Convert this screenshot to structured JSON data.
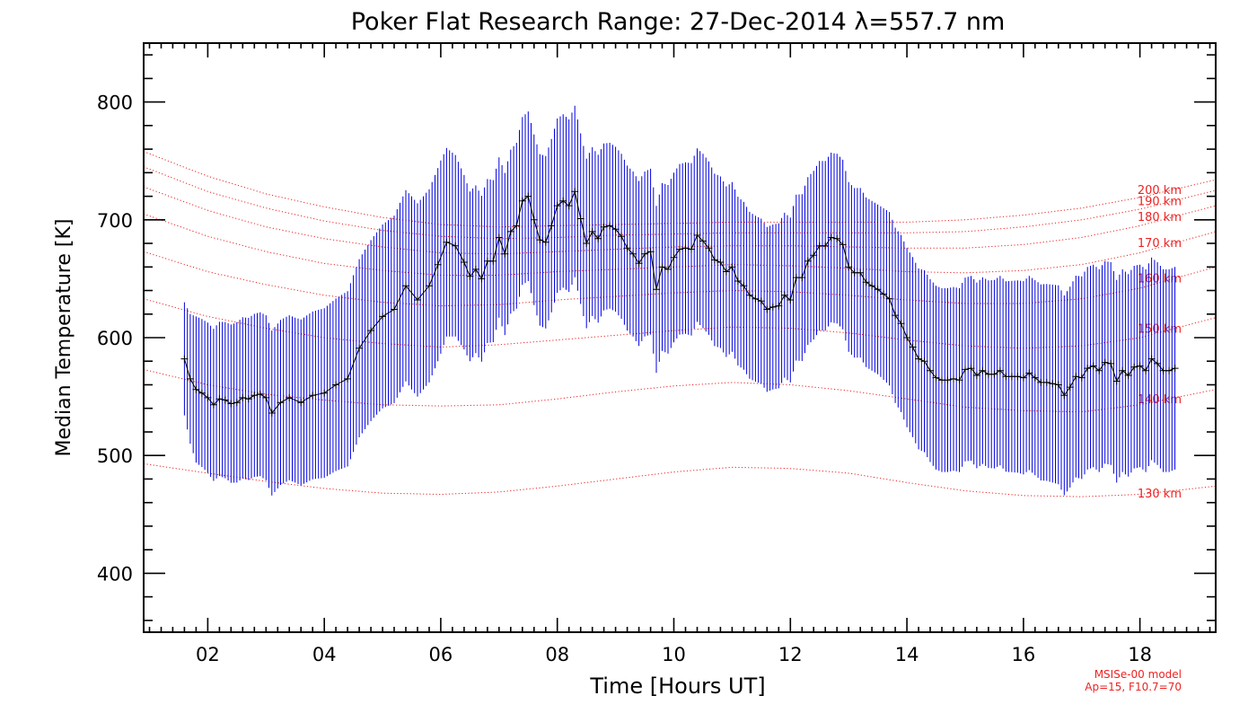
{
  "chart_data": {
    "type": "line",
    "title": "Poker Flat Research Range: 27-Dec-2014 λ=557.7 nm",
    "xlabel": "Time [Hours UT]",
    "ylabel": "Median Temperature [K]",
    "xlim": [
      0.9,
      19.3
    ],
    "ylim": [
      350,
      850
    ],
    "xticks": [
      {
        "value": 2,
        "label": "02"
      },
      {
        "value": 4,
        "label": "04"
      },
      {
        "value": 6,
        "label": "06"
      },
      {
        "value": 8,
        "label": "08"
      },
      {
        "value": 10,
        "label": "10"
      },
      {
        "value": 12,
        "label": "12"
      },
      {
        "value": 14,
        "label": "14"
      },
      {
        "value": 16,
        "label": "16"
      },
      {
        "value": 18,
        "label": "18"
      }
    ],
    "yticks": [
      {
        "value": 400,
        "label": "400"
      },
      {
        "value": 500,
        "label": "500"
      },
      {
        "value": 600,
        "label": "600"
      },
      {
        "value": 700,
        "label": "700"
      },
      {
        "value": 800,
        "label": "800"
      }
    ],
    "grid": false,
    "colors": {
      "series": "#000000",
      "errorbars": "#0000dd",
      "model": "#ee2222"
    },
    "series": [
      {
        "x": [
          1.6,
          1.7,
          1.8,
          1.9,
          2.0,
          2.1,
          2.2,
          2.3,
          2.4,
          2.5,
          2.6,
          2.7,
          2.8,
          2.9,
          3.0,
          3.1,
          3.25,
          3.4,
          3.6,
          3.8,
          4.0,
          4.2,
          4.4,
          4.6,
          4.8,
          5.0,
          5.2,
          5.4,
          5.6,
          5.8,
          5.95,
          6.1,
          6.25,
          6.4,
          6.5,
          6.6,
          6.7,
          6.8,
          6.9,
          7.0,
          7.1,
          7.2,
          7.3,
          7.4,
          7.5,
          7.6,
          7.7,
          7.8,
          7.9,
          8.0,
          8.1,
          8.2,
          8.3,
          8.4,
          8.5,
          8.6,
          8.7,
          8.8,
          8.9,
          9.0,
          9.1,
          9.2,
          9.3,
          9.4,
          9.5,
          9.6,
          9.7,
          9.8,
          9.9,
          10.0,
          10.1,
          10.2,
          10.3,
          10.4,
          10.5,
          10.6,
          10.7,
          10.8,
          10.9,
          11.0,
          11.1,
          11.2,
          11.3,
          11.4,
          11.5,
          11.6,
          11.7,
          11.8,
          11.9,
          12.0,
          12.1,
          12.2,
          12.3,
          12.4,
          12.5,
          12.6,
          12.7,
          12.8,
          12.9,
          13.0,
          13.1,
          13.2,
          13.3,
          13.4,
          13.5,
          13.6,
          13.7,
          13.8,
          13.9,
          14.0,
          14.1,
          14.2,
          14.3,
          14.4,
          14.5,
          14.6,
          14.7,
          14.8,
          14.9,
          15.0,
          15.1,
          15.2,
          15.3,
          15.4,
          15.5,
          15.6,
          15.7,
          15.8,
          15.9,
          16.0,
          16.1,
          16.2,
          16.3,
          16.4,
          16.5,
          16.6,
          16.7,
          16.8,
          16.9,
          17.0,
          17.1,
          17.2,
          17.3,
          17.4,
          17.5,
          17.6,
          17.7,
          17.8,
          17.9,
          18.0,
          18.1,
          18.2,
          18.3,
          18.4,
          18.5,
          18.6
        ],
        "y": [
          582,
          565,
          556,
          553,
          549,
          543,
          548,
          547,
          544,
          545,
          549,
          548,
          551,
          552,
          549,
          536,
          545,
          549,
          545,
          551,
          553,
          560,
          565,
          591,
          606,
          618,
          624,
          644,
          632,
          644,
          662,
          681,
          678,
          664,
          652,
          658,
          650,
          665,
          665,
          685,
          671,
          690,
          695,
          716,
          720,
          700,
          683,
          681,
          695,
          712,
          716,
          712,
          724,
          701,
          680,
          690,
          684,
          694,
          695,
          692,
          686,
          676,
          671,
          663,
          671,
          673,
          641,
          660,
          658,
          668,
          675,
          676,
          675,
          687,
          682,
          676,
          666,
          664,
          656,
          660,
          648,
          644,
          636,
          633,
          631,
          624,
          626,
          627,
          636,
          632,
          651,
          651,
          665,
          670,
          678,
          678,
          685,
          684,
          679,
          660,
          655,
          655,
          647,
          644,
          641,
          637,
          633,
          619,
          612,
          600,
          592,
          582,
          580,
          572,
          566,
          564,
          564,
          565,
          564,
          573,
          574,
          568,
          572,
          569,
          569,
          572,
          567,
          567,
          567,
          566,
          570,
          566,
          562,
          562,
          561,
          560,
          551,
          558,
          567,
          566,
          574,
          576,
          572,
          579,
          578,
          563,
          572,
          568,
          575,
          576,
          572,
          582,
          578,
          572,
          572,
          574
        ]
      }
    ],
    "error_half_width": {
      "x": [
        1.6,
        1.8,
        2.5,
        3.0,
        3.5,
        4.0,
        4.5,
        5.0,
        5.5,
        6.0,
        6.5,
        7.0,
        7.5,
        8.0,
        8.5,
        9.0,
        9.5,
        10.0,
        10.5,
        11.0,
        11.5,
        12.0,
        12.5,
        13.0,
        13.5,
        14.0,
        14.5,
        15.0,
        15.5,
        16.0,
        16.5,
        17.0,
        17.5,
        18.0,
        18.6
      ],
      "y": [
        48,
        62,
        68,
        70,
        70,
        72,
        75,
        78,
        82,
        82,
        72,
        68,
        72,
        74,
        72,
        70,
        70,
        72,
        74,
        72,
        70,
        70,
        72,
        72,
        72,
        76,
        78,
        78,
        80,
        82,
        84,
        86,
        86,
        86,
        86
      ]
    },
    "model": {
      "name": "MSISe-00 model",
      "params": "Ap=15, F10.7=70",
      "x": [
        0.9,
        2.0,
        3.0,
        4.0,
        5.0,
        6.0,
        7.0,
        8.0,
        9.0,
        10.0,
        11.0,
        12.0,
        13.0,
        14.0,
        15.0,
        16.0,
        17.0,
        18.0,
        19.3
      ],
      "curves": [
        {
          "label": "130 km",
          "y": [
            493,
            485,
            478,
            472,
            468,
            467,
            469,
            474,
            480,
            486,
            490,
            489,
            485,
            477,
            470,
            466,
            465,
            467,
            474
          ]
        },
        {
          "label": "140 km",
          "y": [
            573,
            560,
            552,
            547,
            543,
            542,
            543,
            548,
            554,
            559,
            562,
            560,
            555,
            548,
            541,
            538,
            537,
            543,
            556
          ]
        },
        {
          "label": "150 km",
          "y": [
            633,
            618,
            608,
            600,
            595,
            592,
            594,
            598,
            602,
            606,
            609,
            608,
            604,
            598,
            593,
            591,
            593,
            600,
            617
          ]
        },
        {
          "label": "160 km",
          "y": [
            673,
            656,
            645,
            636,
            630,
            627,
            628,
            632,
            635,
            638,
            640,
            639,
            636,
            632,
            629,
            629,
            633,
            642,
            660
          ]
        },
        {
          "label": "170 km",
          "y": [
            705,
            686,
            673,
            663,
            657,
            653,
            653,
            656,
            658,
            660,
            662,
            661,
            659,
            656,
            655,
            657,
            662,
            672,
            690
          ]
        },
        {
          "label": "180 km",
          "y": [
            728,
            708,
            694,
            684,
            677,
            672,
            671,
            673,
            675,
            677,
            678,
            678,
            677,
            676,
            676,
            679,
            685,
            695,
            712
          ]
        },
        {
          "label": "190 km",
          "y": [
            745,
            724,
            710,
            699,
            691,
            686,
            684,
            685,
            687,
            688,
            689,
            689,
            689,
            689,
            690,
            694,
            700,
            709,
            725
          ]
        },
        {
          "label": "200 km",
          "y": [
            758,
            737,
            722,
            711,
            702,
            696,
            694,
            695,
            696,
            697,
            698,
            698,
            698,
            698,
            700,
            704,
            710,
            719,
            734
          ]
        }
      ]
    }
  }
}
